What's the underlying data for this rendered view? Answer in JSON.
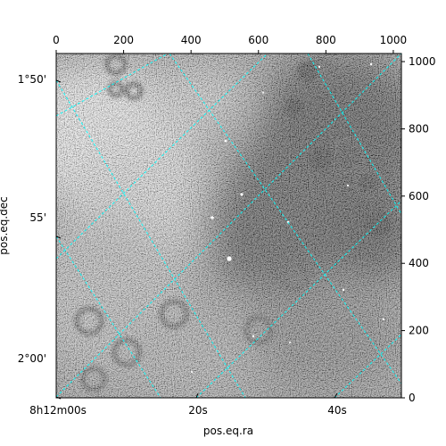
{
  "chart_data": {
    "type": "heatmap",
    "colormap": "gray",
    "grid": true,
    "grid_color": "#00ffff",
    "xlabel": "pos.eq.ra",
    "ylabel": "pos.eq.dec",
    "pixel_axes": {
      "x_range": [
        0,
        1024
      ],
      "y_range": [
        0,
        1024
      ],
      "x_ticks": [
        0,
        200,
        400,
        600,
        800,
        1000
      ],
      "y_ticks": [
        0,
        200,
        400,
        600,
        800,
        1000
      ]
    },
    "ra_ticks": [
      "8h12m00s",
      "20s",
      "40s"
    ],
    "dec_ticks": [
      "1°50'",
      "55'",
      "2°00'"
    ]
  }
}
